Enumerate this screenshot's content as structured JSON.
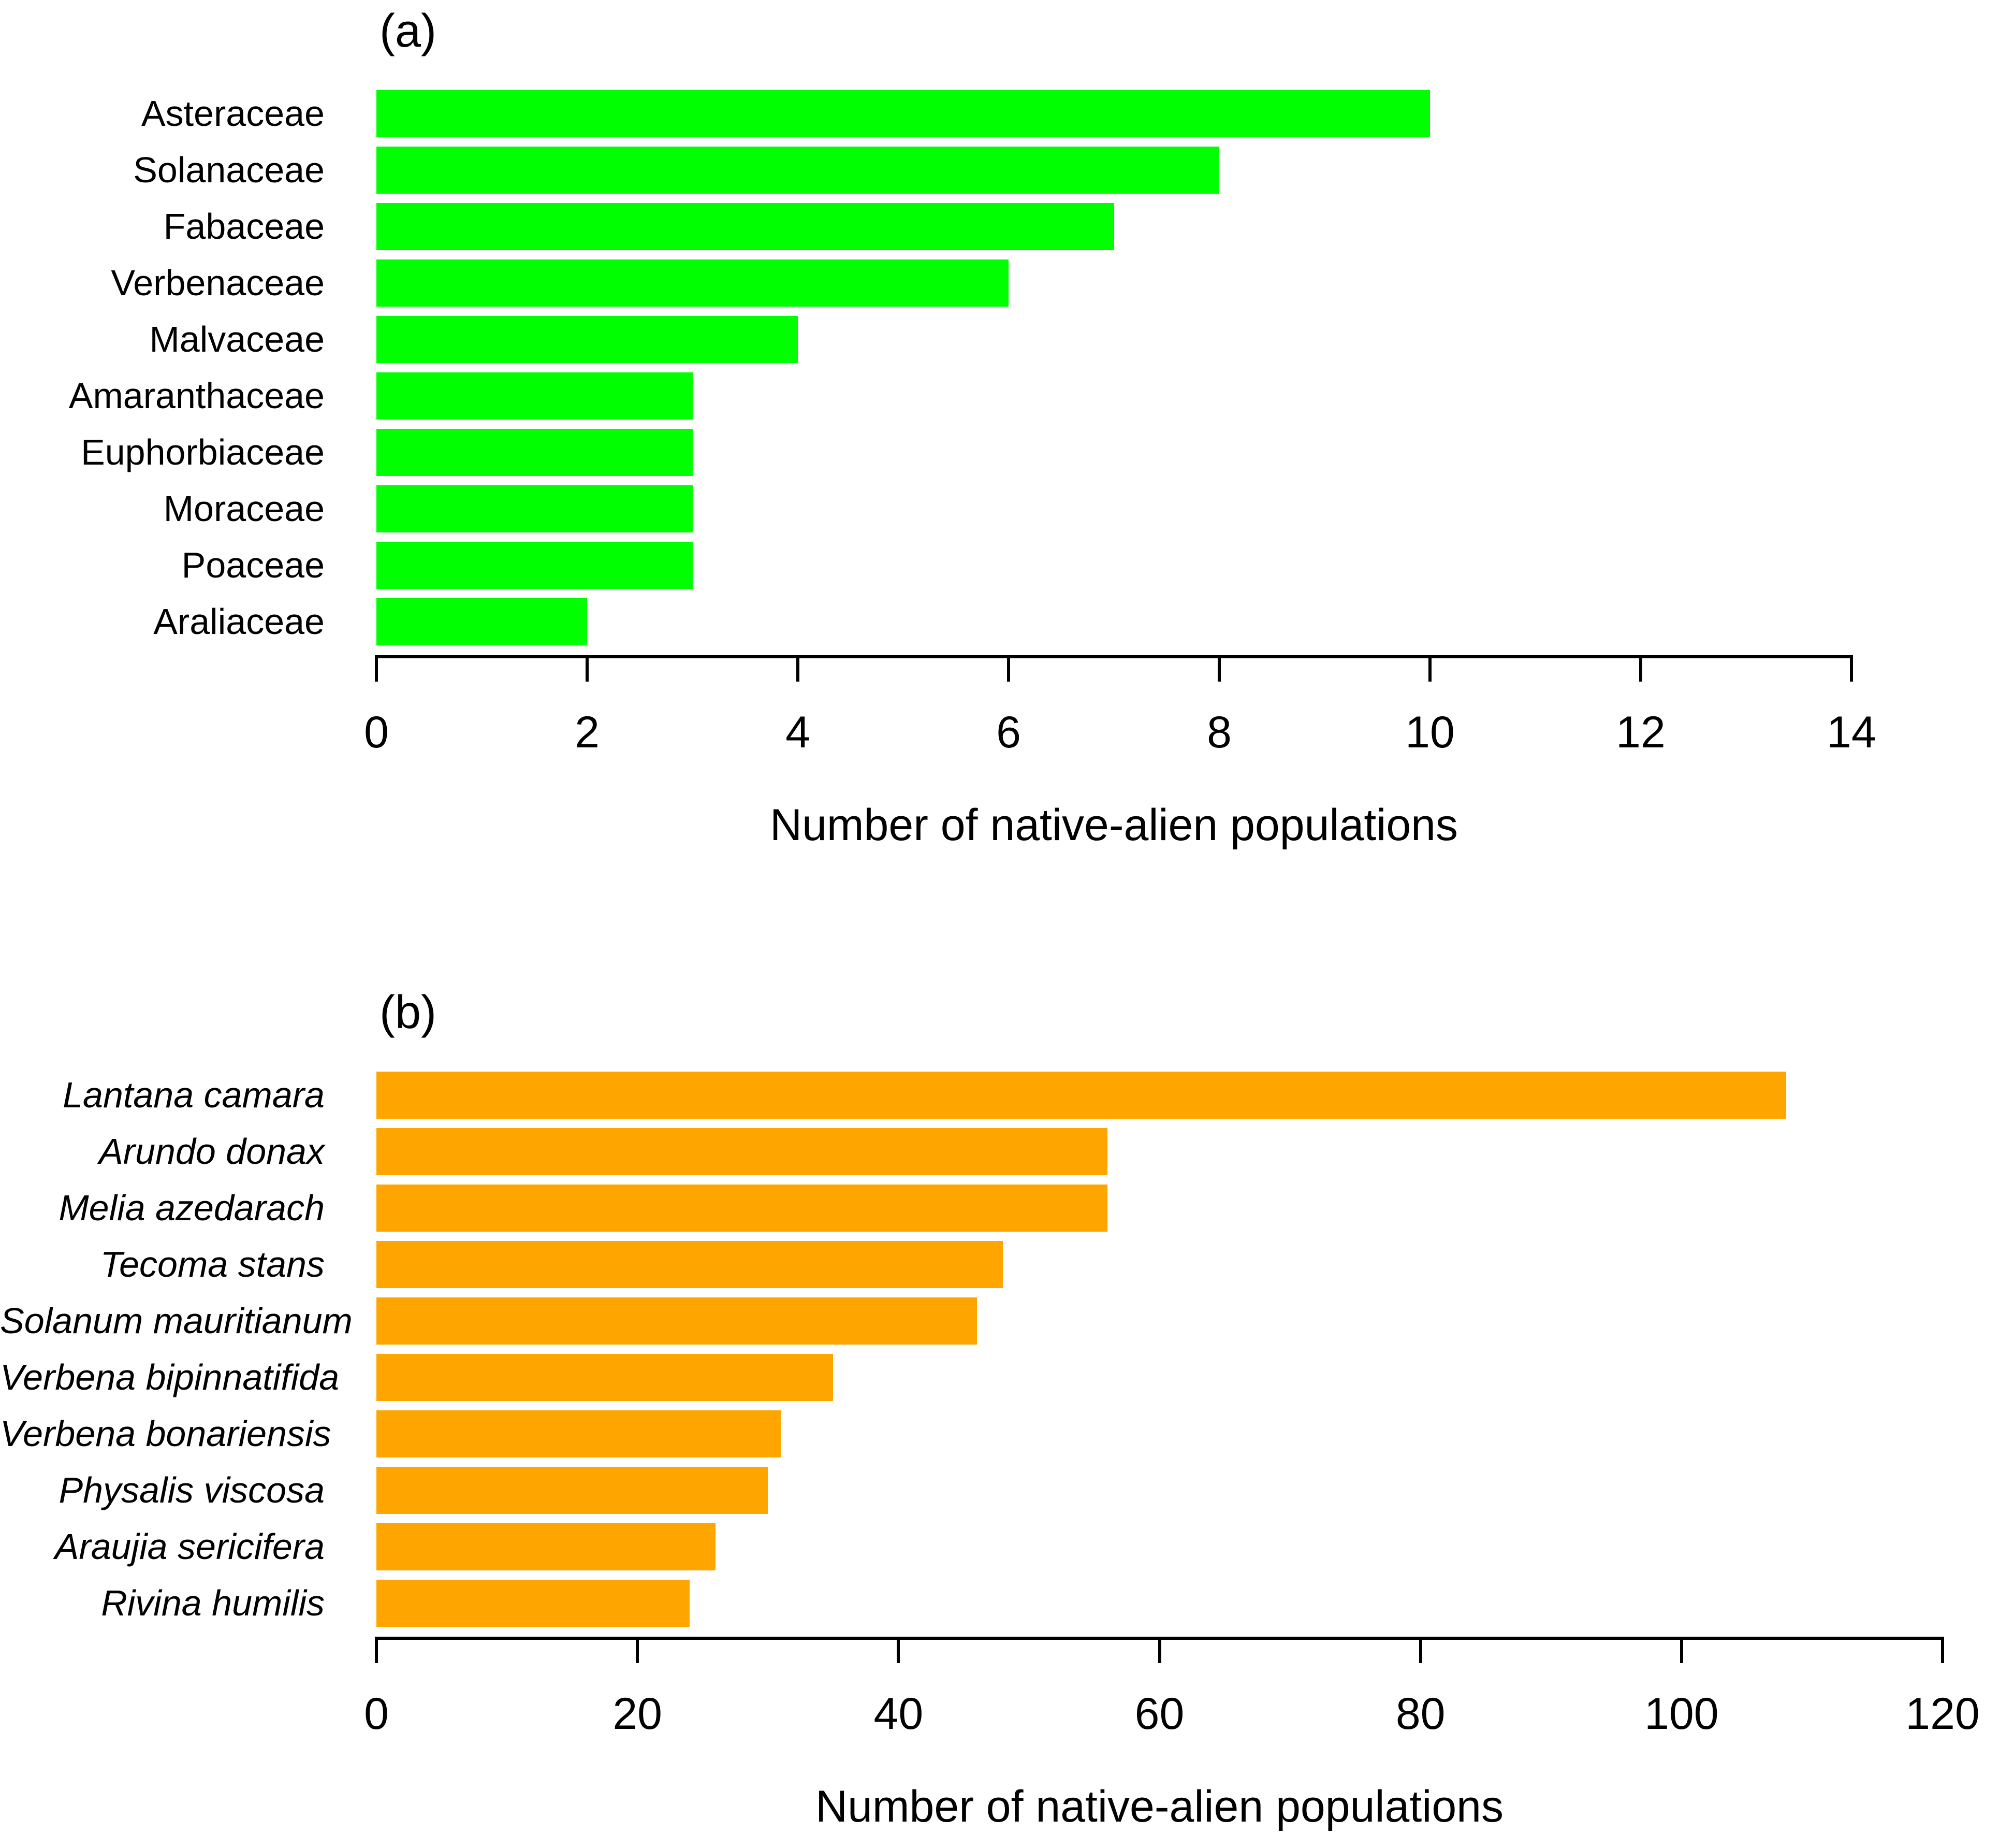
{
  "chart_data": [
    {
      "type": "bar",
      "orientation": "horizontal",
      "panel_label": "(a)",
      "bar_color": "#00FF00",
      "categories": [
        "Asteraceae",
        "Solanaceae",
        "Fabaceae",
        "Verbenaceae",
        "Malvaceae",
        "Amaranthaceae",
        "Euphorbiaceae",
        "Moraceae",
        "Poaceae",
        "Araliaceae"
      ],
      "values": [
        10,
        8,
        7,
        6,
        4,
        3,
        3,
        3,
        3,
        2
      ],
      "xlabel": "Number of native-alien populations",
      "ylabel": "",
      "xlim": [
        0,
        14
      ],
      "xticks": [
        0,
        2,
        4,
        6,
        8,
        10,
        12,
        14
      ],
      "grid": false,
      "legend": "none",
      "category_label_style": "plain"
    },
    {
      "type": "bar",
      "orientation": "horizontal",
      "panel_label": "(b)",
      "bar_color": "#FFA500",
      "categories": [
        "Lantana camara",
        "Arundo donax",
        "Melia azedarach",
        "Tecoma stans",
        "Solanum mauritianum",
        "Verbena bipinnatifida",
        "Verbena bonariensis",
        "Physalis viscosa",
        "Araujia sericifera",
        "Rivina humilis"
      ],
      "values": [
        108,
        56,
        56,
        48,
        46,
        35,
        31,
        30,
        26,
        24
      ],
      "xlabel": "Number of native-alien populations",
      "ylabel": "",
      "xlim": [
        0,
        120
      ],
      "xticks": [
        0,
        20,
        40,
        60,
        80,
        100,
        120
      ],
      "grid": false,
      "legend": "none",
      "category_label_style": "italic"
    }
  ]
}
